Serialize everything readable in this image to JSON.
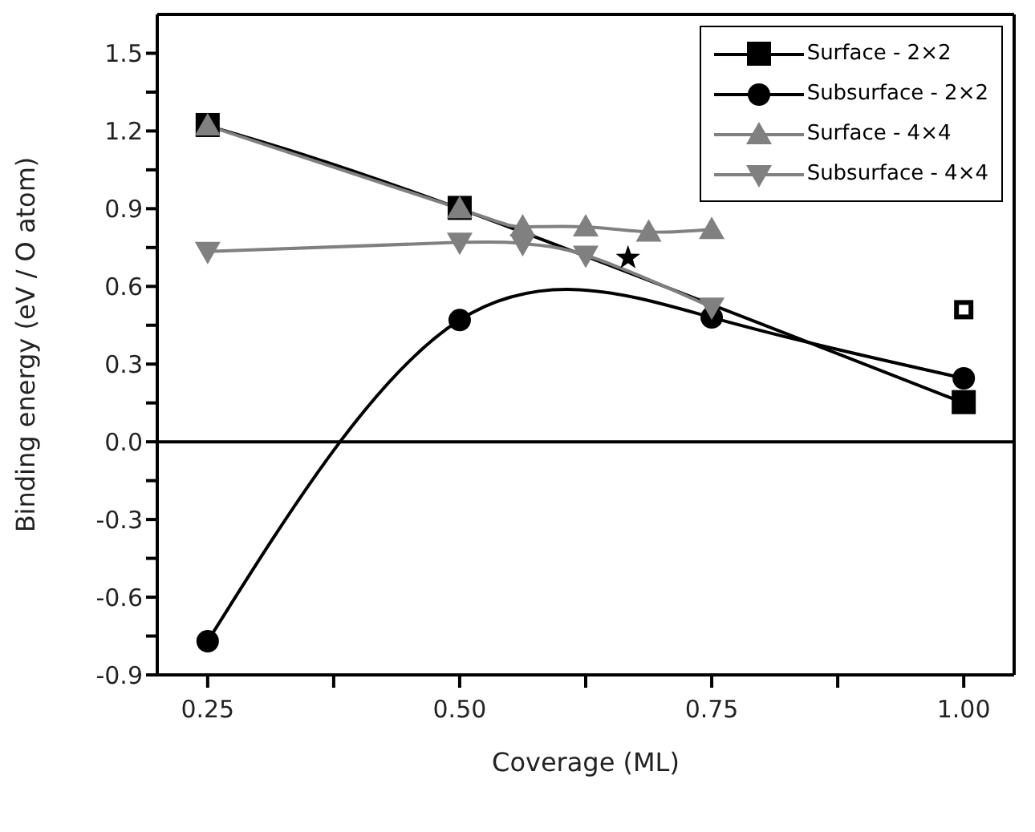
{
  "chart_data": {
    "type": "line",
    "xlabel": "Coverage (ML)",
    "ylabel": "Binding energy (eV / O atom)",
    "xlim": [
      0.2,
      1.05
    ],
    "ylim": [
      -0.9,
      1.65
    ],
    "xticks": [
      {
        "value": 0.25,
        "label": "0.25"
      },
      {
        "value": 0.375,
        "label": null
      },
      {
        "value": 0.5,
        "label": "0.50"
      },
      {
        "value": 0.625,
        "label": null
      },
      {
        "value": 0.75,
        "label": "0.75"
      },
      {
        "value": 0.875,
        "label": null
      },
      {
        "value": 1.0,
        "label": "1.00"
      }
    ],
    "yticks": [
      {
        "value": -0.9,
        "label": "-0.9"
      },
      {
        "value": -0.75,
        "label": null
      },
      {
        "value": -0.6,
        "label": "-0.6"
      },
      {
        "value": -0.45,
        "label": null
      },
      {
        "value": -0.3,
        "label": "-0.3"
      },
      {
        "value": -0.15,
        "label": null
      },
      {
        "value": 0,
        "label": "0.0"
      },
      {
        "value": 0.15,
        "label": null
      },
      {
        "value": 0.3,
        "label": "0.3"
      },
      {
        "value": 0.45,
        "label": null
      },
      {
        "value": 0.6,
        "label": "0.6"
      },
      {
        "value": 0.75,
        "label": null
      },
      {
        "value": 0.9,
        "label": "0.9"
      },
      {
        "value": 1.05,
        "label": null
      },
      {
        "value": 1.2,
        "label": "1.2"
      },
      {
        "value": 1.35,
        "label": null
      },
      {
        "value": 1.5,
        "label": "1.5"
      }
    ],
    "grid": false,
    "legend": "top right",
    "ref_lines": [
      {
        "axis": "y",
        "value": 0,
        "color": "#000000"
      }
    ],
    "series": [
      {
        "name": "Surface - 2×2",
        "color": "#000000",
        "marker": "square",
        "x": [
          0.25,
          0.5,
          0.75,
          1.0
        ],
        "values": [
          1.22,
          0.9,
          null,
          0.15
        ]
      },
      {
        "name": "Subsurface - 2×2",
        "color": "#000000",
        "marker": "circle",
        "x": [
          0.25,
          0.5,
          0.75,
          1.0
        ],
        "values": [
          -0.77,
          0.47,
          0.48,
          0.245
        ]
      },
      {
        "name": "Surface - 4×4",
        "color": "#808080",
        "marker": "triangle",
        "x": [
          0.25,
          0.5,
          0.5625,
          0.625,
          0.6875,
          0.75
        ],
        "values": [
          1.22,
          0.9,
          0.83,
          0.83,
          0.81,
          0.82
        ]
      },
      {
        "name": "Subsurface - 4×4",
        "color": "#808080",
        "marker": "triangle-down",
        "x": [
          0.25,
          0.5,
          0.5625,
          0.625,
          0.75
        ],
        "values": [
          0.735,
          0.77,
          0.765,
          0.72,
          0.52
        ]
      },
      {
        "type": "scatter",
        "color": "#000000",
        "marker": "star",
        "x": [
          0.667
        ],
        "values": [
          0.71
        ]
      },
      {
        "type": "scatter",
        "color": "#000000",
        "marker": "square-open",
        "x": [
          1.0
        ],
        "values": [
          0.51
        ]
      }
    ]
  }
}
